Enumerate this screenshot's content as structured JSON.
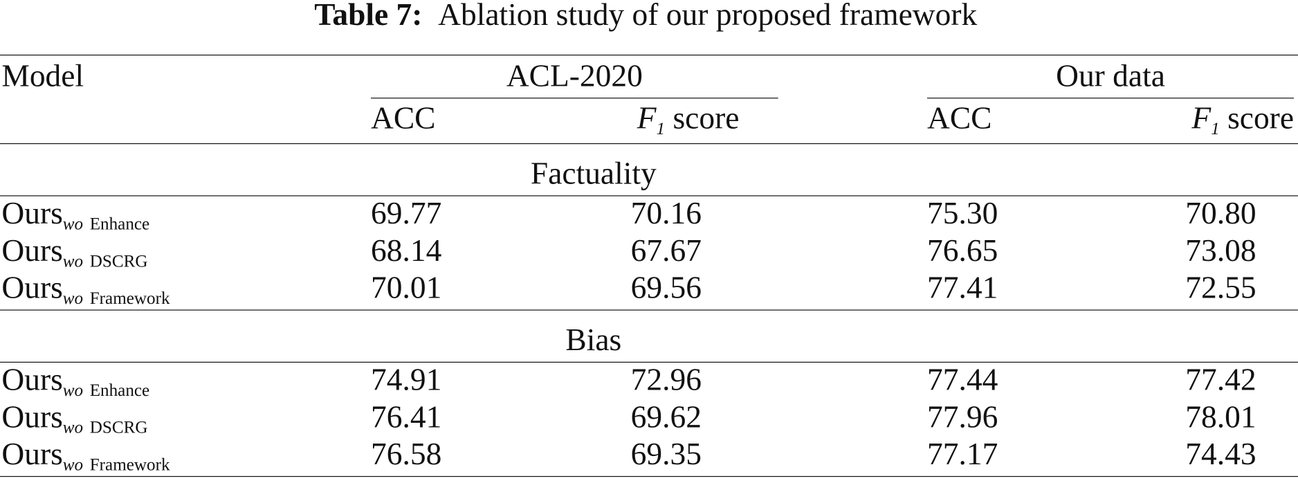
{
  "title": {
    "label": "Table 7:",
    "text": "Ablation study of our proposed framework"
  },
  "header": {
    "model": "Model",
    "groups": [
      "ACL-2020",
      "Our data"
    ],
    "columns": [
      {
        "text": "ACC"
      },
      {
        "italic": "F",
        "sub": "1",
        "text": "score"
      },
      {
        "text": "ACC"
      },
      {
        "italic": "F",
        "sub": "1",
        "text": "score"
      }
    ]
  },
  "sections": [
    {
      "name": "Factuality",
      "rows": [
        {
          "model": {
            "base": "Ours",
            "sub": "wo",
            "variant": "Enhance"
          },
          "values": [
            "69.77",
            "70.16",
            "75.30",
            "70.80"
          ]
        },
        {
          "model": {
            "base": "Ours",
            "sub": "wo",
            "variant": "DSCRG"
          },
          "values": [
            "68.14",
            "67.67",
            "76.65",
            "73.08"
          ]
        },
        {
          "model": {
            "base": "Ours",
            "sub": "wo",
            "variant": "Framework"
          },
          "values": [
            "70.01",
            "69.56",
            "77.41",
            "72.55"
          ]
        }
      ]
    },
    {
      "name": "Bias",
      "rows": [
        {
          "model": {
            "base": "Ours",
            "sub": "wo",
            "variant": "Enhance"
          },
          "values": [
            "74.91",
            "72.96",
            "77.44",
            "77.42"
          ]
        },
        {
          "model": {
            "base": "Ours",
            "sub": "wo",
            "variant": "DSCRG"
          },
          "values": [
            "76.41",
            "69.62",
            "77.96",
            "78.01"
          ]
        },
        {
          "model": {
            "base": "Ours",
            "sub": "wo",
            "variant": "Framework"
          },
          "values": [
            "76.58",
            "69.35",
            "77.17",
            "74.43"
          ]
        }
      ]
    }
  ]
}
